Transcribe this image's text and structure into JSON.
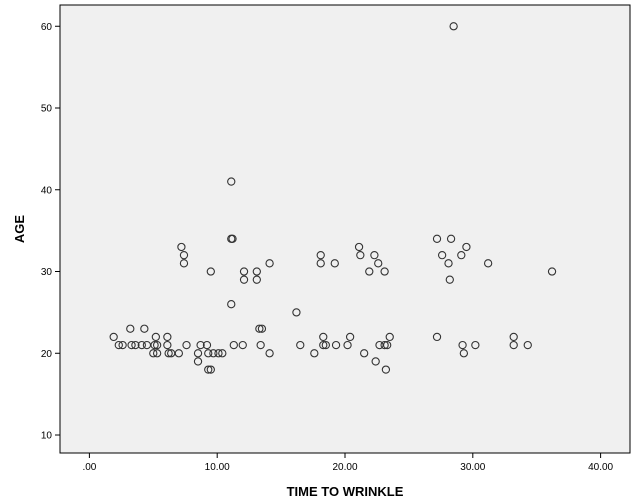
{
  "chart_data": {
    "type": "scatter",
    "xlabel": "TIME TO WRINKLE",
    "ylabel": "AGE",
    "xlim": [
      -2.3,
      42.3
    ],
    "ylim": [
      7.8,
      62.6
    ],
    "x_ticks": [
      0,
      10,
      20,
      30,
      40
    ],
    "x_tick_labels": [
      ".00",
      "10.00",
      "20.00",
      "30.00",
      "40.00"
    ],
    "y_ticks": [
      10,
      20,
      30,
      40,
      50,
      60
    ],
    "y_tick_labels": [
      "10",
      "20",
      "30",
      "40",
      "50",
      "60"
    ],
    "grid": false,
    "colors": {
      "background": "#ffffff",
      "plot_area": "#f0f0f0",
      "marker": "#333333",
      "axis": "#000000"
    },
    "points": [
      {
        "x": 1.9,
        "y": 22
      },
      {
        "x": 2.3,
        "y": 21
      },
      {
        "x": 2.6,
        "y": 21
      },
      {
        "x": 3.2,
        "y": 23
      },
      {
        "x": 3.3,
        "y": 21
      },
      {
        "x": 3.6,
        "y": 21
      },
      {
        "x": 4.1,
        "y": 21
      },
      {
        "x": 4.3,
        "y": 23
      },
      {
        "x": 4.5,
        "y": 21
      },
      {
        "x": 5.0,
        "y": 20
      },
      {
        "x": 5.1,
        "y": 21
      },
      {
        "x": 5.2,
        "y": 22
      },
      {
        "x": 5.3,
        "y": 21
      },
      {
        "x": 5.3,
        "y": 20
      },
      {
        "x": 6.1,
        "y": 22
      },
      {
        "x": 6.1,
        "y": 21
      },
      {
        "x": 6.2,
        "y": 20
      },
      {
        "x": 6.4,
        "y": 20
      },
      {
        "x": 7.0,
        "y": 20
      },
      {
        "x": 7.2,
        "y": 33
      },
      {
        "x": 7.4,
        "y": 32
      },
      {
        "x": 7.4,
        "y": 31
      },
      {
        "x": 7.6,
        "y": 21
      },
      {
        "x": 8.5,
        "y": 20
      },
      {
        "x": 8.5,
        "y": 19
      },
      {
        "x": 8.7,
        "y": 21
      },
      {
        "x": 9.2,
        "y": 21
      },
      {
        "x": 9.3,
        "y": 20
      },
      {
        "x": 9.3,
        "y": 18
      },
      {
        "x": 9.5,
        "y": 30
      },
      {
        "x": 9.5,
        "y": 18
      },
      {
        "x": 9.7,
        "y": 20
      },
      {
        "x": 10.1,
        "y": 20
      },
      {
        "x": 10.4,
        "y": 20
      },
      {
        "x": 11.1,
        "y": 41
      },
      {
        "x": 11.1,
        "y": 34
      },
      {
        "x": 11.2,
        "y": 34
      },
      {
        "x": 11.1,
        "y": 26
      },
      {
        "x": 11.3,
        "y": 21
      },
      {
        "x": 12.0,
        "y": 21
      },
      {
        "x": 12.1,
        "y": 30
      },
      {
        "x": 12.1,
        "y": 29
      },
      {
        "x": 13.1,
        "y": 30
      },
      {
        "x": 13.1,
        "y": 29
      },
      {
        "x": 13.3,
        "y": 23
      },
      {
        "x": 13.5,
        "y": 23
      },
      {
        "x": 13.4,
        "y": 21
      },
      {
        "x": 14.1,
        "y": 31
      },
      {
        "x": 14.1,
        "y": 20
      },
      {
        "x": 16.2,
        "y": 25
      },
      {
        "x": 16.5,
        "y": 21
      },
      {
        "x": 17.6,
        "y": 20
      },
      {
        "x": 18.1,
        "y": 32
      },
      {
        "x": 18.1,
        "y": 31
      },
      {
        "x": 18.3,
        "y": 22
      },
      {
        "x": 18.3,
        "y": 21
      },
      {
        "x": 18.5,
        "y": 21
      },
      {
        "x": 19.2,
        "y": 31
      },
      {
        "x": 19.3,
        "y": 21
      },
      {
        "x": 20.2,
        "y": 21
      },
      {
        "x": 20.4,
        "y": 22
      },
      {
        "x": 21.1,
        "y": 33
      },
      {
        "x": 21.2,
        "y": 32
      },
      {
        "x": 21.5,
        "y": 20
      },
      {
        "x": 21.9,
        "y": 30
      },
      {
        "x": 22.3,
        "y": 32
      },
      {
        "x": 22.4,
        "y": 19
      },
      {
        "x": 22.6,
        "y": 31
      },
      {
        "x": 22.7,
        "y": 21
      },
      {
        "x": 23.1,
        "y": 30
      },
      {
        "x": 23.1,
        "y": 21
      },
      {
        "x": 23.2,
        "y": 18
      },
      {
        "x": 23.3,
        "y": 21
      },
      {
        "x": 23.5,
        "y": 22
      },
      {
        "x": 27.2,
        "y": 34
      },
      {
        "x": 27.2,
        "y": 22
      },
      {
        "x": 27.6,
        "y": 32
      },
      {
        "x": 28.1,
        "y": 31
      },
      {
        "x": 28.2,
        "y": 29
      },
      {
        "x": 28.3,
        "y": 34
      },
      {
        "x": 28.5,
        "y": 60
      },
      {
        "x": 29.1,
        "y": 32
      },
      {
        "x": 29.2,
        "y": 21
      },
      {
        "x": 29.3,
        "y": 20
      },
      {
        "x": 29.5,
        "y": 33
      },
      {
        "x": 30.2,
        "y": 21
      },
      {
        "x": 31.2,
        "y": 31
      },
      {
        "x": 33.2,
        "y": 22
      },
      {
        "x": 33.2,
        "y": 21
      },
      {
        "x": 34.3,
        "y": 21
      },
      {
        "x": 36.2,
        "y": 30
      }
    ]
  }
}
